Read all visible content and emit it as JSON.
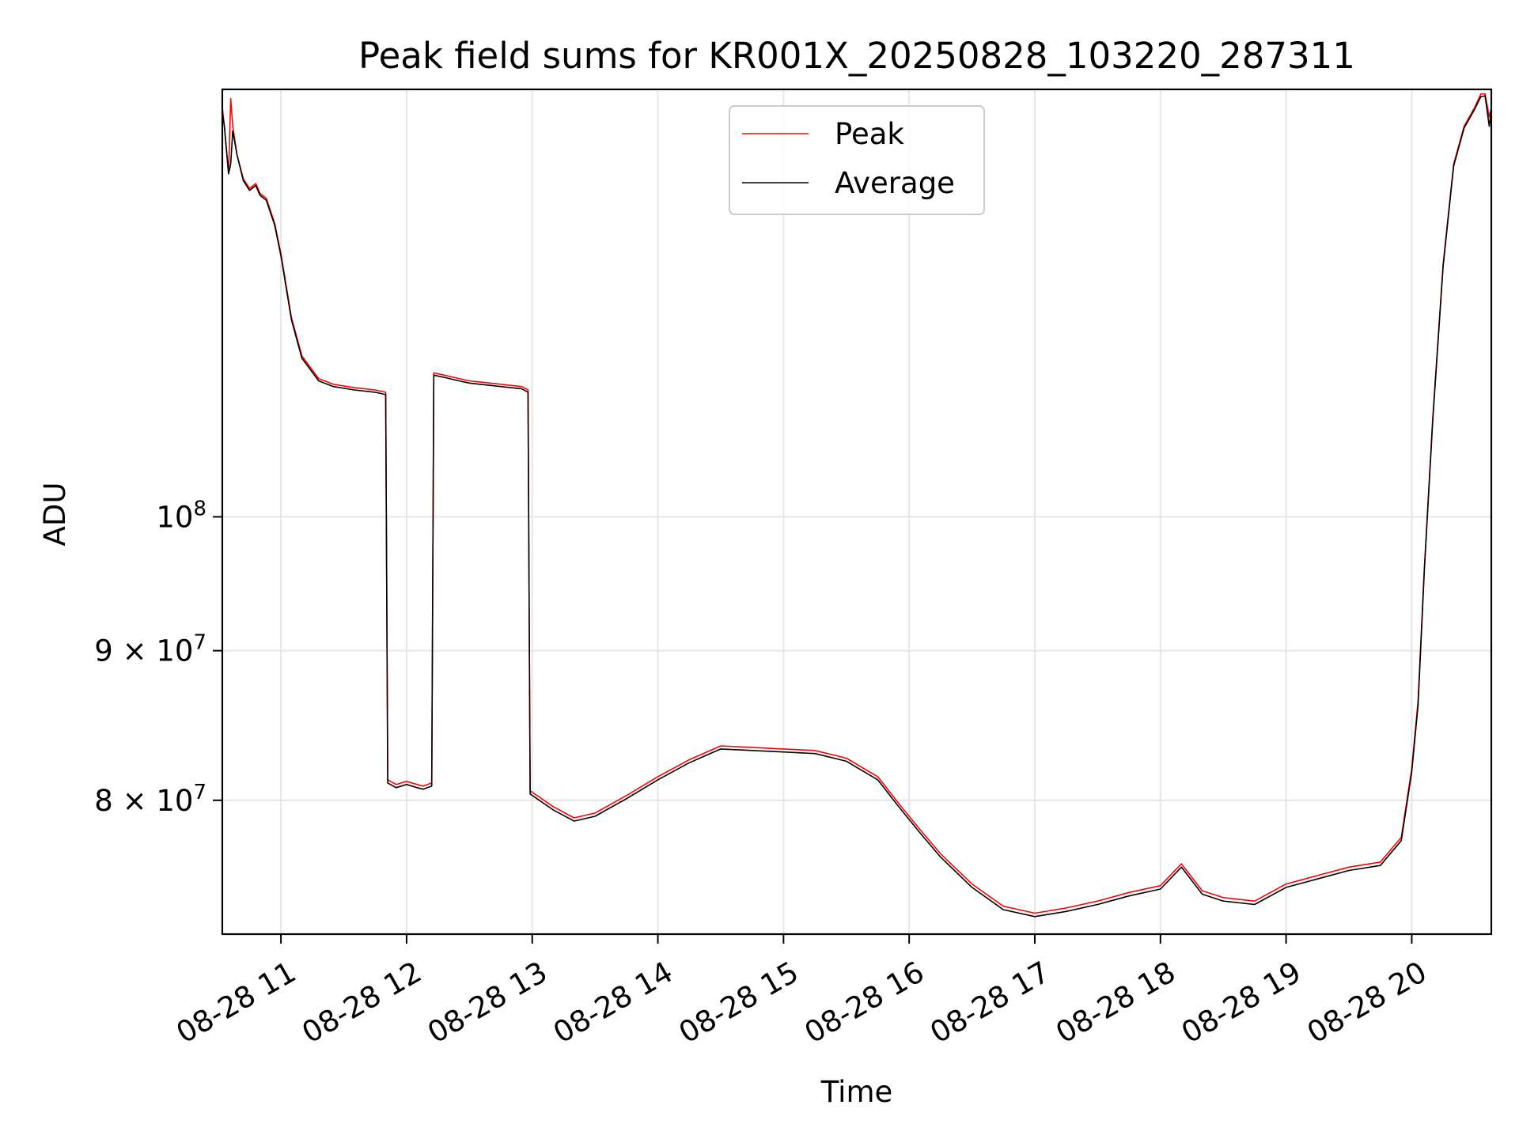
{
  "chart_data": {
    "type": "line",
    "title": "Peak field sums for KR001X_20250828_103220_287311",
    "xlabel": "Time",
    "ylabel": "ADU",
    "yscale": "log",
    "xlim": [
      "2025-08-28T10:32:00",
      "2025-08-28T20:38:00"
    ],
    "ylim": [
      72000000,
      140000000
    ],
    "grid": true,
    "legend": {
      "placement": "top-center"
    },
    "x_ticks": [
      "08-28 11",
      "08-28 12",
      "08-28 13",
      "08-28 14",
      "08-28 15",
      "08-28 16",
      "08-28 17",
      "08-28 18",
      "08-28 19",
      "08-28 20"
    ],
    "y_ticks": [
      {
        "value": 100000000,
        "base": "10",
        "exp": "8",
        "mantissa": ""
      },
      {
        "value": 90000000,
        "base": "10",
        "exp": "7",
        "mantissa": "9"
      },
      {
        "value": 80000000,
        "base": "10",
        "exp": "7",
        "mantissa": "8"
      }
    ],
    "series": [
      {
        "name": "Peak",
        "color": "#ff0000",
        "x": [
          "2025-08-28T10:32:00",
          "2025-08-28T10:33:00",
          "2025-08-28T10:35:00",
          "2025-08-28T10:36:00",
          "2025-08-28T10:37:00",
          "2025-08-28T10:39:00",
          "2025-08-28T10:42:00",
          "2025-08-28T10:45:00",
          "2025-08-28T10:48:00",
          "10:50",
          "2025-08-28T10:53:00",
          "2025-08-28T10:57:00",
          "2025-08-28T11:00:00",
          "2025-08-28T11:05:00",
          "2025-08-28T11:10:00",
          "2025-08-28T11:18:00",
          "2025-08-28T11:25:00",
          "2025-08-28T11:35:00",
          "2025-08-28T11:45:00",
          "2025-08-28T11:50:00",
          "2025-08-28T11:51:00",
          "2025-08-28T11:55:00",
          "2025-08-28T12:00:00",
          "2025-08-28T12:05:00",
          "2025-08-28T12:08:00",
          "2025-08-28T12:12:00",
          "2025-08-28T12:13:00",
          "2025-08-28T12:18:00",
          "2025-08-28T12:25:00",
          "2025-08-28T12:30:00",
          "2025-08-28T12:35:00",
          "2025-08-28T12:45:00",
          "2025-08-28T12:55:00",
          "2025-08-28T12:58:00",
          "2025-08-28T12:59:00",
          "2025-08-28T13:10:00",
          "2025-08-28T13:20:00",
          "2025-08-28T13:30:00",
          "2025-08-28T13:45:00",
          "2025-08-28T14:00:00",
          "2025-08-28T14:15:00",
          "2025-08-28T14:30:00",
          "2025-08-28T14:45:00",
          "2025-08-28T15:00:00",
          "2025-08-28T15:15:00",
          "2025-08-28T15:30:00",
          "2025-08-28T15:45:00",
          "2025-08-28T15:55:00",
          "2025-08-28T16:05:00",
          "2025-08-28T16:15:00",
          "2025-08-28T16:30:00",
          "2025-08-28T16:45:00",
          "2025-08-28T17:00:00",
          "2025-08-28T17:15:00",
          "2025-08-28T17:30:00",
          "2025-08-28T17:45:00",
          "2025-08-28T18:00:00",
          "2025-08-28T18:10:00",
          "2025-08-28T18:20:00",
          "2025-08-28T18:30:00",
          "2025-08-28T18:45:00",
          "2025-08-28T19:00:00",
          "2025-08-28T19:15:00",
          "2025-08-28T19:30:00",
          "2025-08-28T19:45:00",
          "2025-08-28T19:55:00",
          "2025-08-28T20:00:00",
          "2025-08-28T20:03:00",
          "2025-08-28T20:06:00",
          "2025-08-28T20:10:00",
          "2025-08-28T20:15:00",
          "2025-08-28T20:20:00",
          "2025-08-28T20:25:00",
          "2025-08-28T20:30:00",
          "2025-08-28T20:33:00",
          "2025-08-28T20:35:00",
          "2025-08-28T20:37:00",
          "2025-08-28T20:38:00"
        ],
        "values": [
          138000000,
          136000000,
          131000000,
          139000000,
          136000000,
          133000000,
          130500000,
          129500000,
          130000000,
          129000000,
          128500000,
          126000000,
          123000000,
          117000000,
          113500000,
          111500000,
          111000000,
          110700000,
          110500000,
          110300000,
          81300000,
          81000000,
          81200000,
          81000000,
          80900000,
          81100000,
          112000000,
          111800000,
          111500000,
          111300000,
          111200000,
          111000000,
          110800000,
          110500000,
          80600000,
          79600000,
          78900000,
          79200000,
          80300000,
          81500000,
          82600000,
          83500000,
          83400000,
          83300000,
          83200000,
          82700000,
          81500000,
          79800000,
          78200000,
          76700000,
          74900000,
          73600000,
          73200000,
          73500000,
          73900000,
          74400000,
          74800000,
          76100000,
          74500000,
          74100000,
          73900000,
          74900000,
          75400000,
          75900000,
          76200000,
          77700000,
          82000000,
          86500000,
          96000000,
          108000000,
          122000000,
          132000000,
          136000000,
          138000000,
          139500000,
          139500000,
          137000000,
          138000000
        ]
      },
      {
        "name": "Average",
        "color": "#000000",
        "x": [
          "2025-08-28T10:32:00",
          "2025-08-28T10:33:00",
          "2025-08-28T10:35:00",
          "2025-08-28T10:36:00",
          "2025-08-28T10:37:00",
          "2025-08-28T10:39:00",
          "2025-08-28T10:42:00",
          "2025-08-28T10:45:00",
          "2025-08-28T10:48:00",
          "2025-08-28T10:50:00",
          "2025-08-28T10:53:00",
          "2025-08-28T10:57:00",
          "2025-08-28T11:00:00",
          "2025-08-28T11:05:00",
          "2025-08-28T11:10:00",
          "2025-08-28T11:18:00",
          "2025-08-28T11:25:00",
          "2025-08-28T11:35:00",
          "2025-08-28T11:45:00",
          "2025-08-28T11:50:00",
          "2025-08-28T11:51:00",
          "2025-08-28T11:55:00",
          "2025-08-28T12:00:00",
          "2025-08-28T12:05:00",
          "2025-08-28T12:08:00",
          "2025-08-28T12:12:00",
          "2025-08-28T12:13:00",
          "2025-08-28T12:18:00",
          "2025-08-28T12:25:00",
          "2025-08-28T12:30:00",
          "2025-08-28T12:35:00",
          "2025-08-28T12:45:00",
          "2025-08-28T12:55:00",
          "2025-08-28T12:58:00",
          "2025-08-28T12:59:00",
          "2025-08-28T13:10:00",
          "2025-08-28T13:20:00",
          "2025-08-28T13:30:00",
          "2025-08-28T13:45:00",
          "2025-08-28T14:00:00",
          "2025-08-28T14:15:00",
          "2025-08-28T14:30:00",
          "2025-08-28T14:45:00",
          "2025-08-28T15:00:00",
          "2025-08-28T15:15:00",
          "2025-08-28T15:30:00",
          "2025-08-28T15:45:00",
          "2025-08-28T15:55:00",
          "2025-08-28T16:05:00",
          "2025-08-28T16:15:00",
          "2025-08-28T16:30:00",
          "2025-08-28T16:45:00",
          "2025-08-28T17:00:00",
          "2025-08-28T17:15:00",
          "2025-08-28T17:30:00",
          "2025-08-28T17:45:00",
          "2025-08-28T18:00:00",
          "2025-08-28T18:10:00",
          "2025-08-28T18:20:00",
          "2025-08-28T18:30:00",
          "2025-08-28T18:45:00",
          "2025-08-28T19:00:00",
          "2025-08-28T19:15:00",
          "2025-08-28T19:30:00",
          "2025-08-28T19:45:00",
          "2025-08-28T19:55:00",
          "2025-08-28T20:00:00",
          "2025-08-28T20:03:00",
          "2025-08-28T20:06:00",
          "2025-08-28T20:10:00",
          "2025-08-28T20:15:00",
          "2025-08-28T20:20:00",
          "2025-08-28T20:25:00",
          "2025-08-28T20:30:00",
          "2025-08-28T20:33:00",
          "2025-08-28T20:35:00",
          "2025-08-28T20:37:00",
          "2025-08-28T20:38:00"
        ],
        "values": [
          137500000,
          136000000,
          131000000,
          132000000,
          135500000,
          133000000,
          130300000,
          129300000,
          129800000,
          128800000,
          128300000,
          125800000,
          122800000,
          116800000,
          113300000,
          111300000,
          110800000,
          110500000,
          110300000,
          110100000,
          81100000,
          80800000,
          81000000,
          80800000,
          80700000,
          80900000,
          111800000,
          111600000,
          111300000,
          111100000,
          111000000,
          110800000,
          110600000,
          110300000,
          80400000,
          79400000,
          78700000,
          79000000,
          80100000,
          81300000,
          82400000,
          83300000,
          83200000,
          83100000,
          83000000,
          82500000,
          81300000,
          79600000,
          78000000,
          76500000,
          74700000,
          73400000,
          73000000,
          73300000,
          73700000,
          74200000,
          74600000,
          75900000,
          74300000,
          73900000,
          73700000,
          74700000,
          75200000,
          75700000,
          76000000,
          77500000,
          81800000,
          86200000,
          95800000,
          107800000,
          121800000,
          131800000,
          135800000,
          137800000,
          139200000,
          139300000,
          136000000,
          137700000
        ]
      }
    ]
  }
}
